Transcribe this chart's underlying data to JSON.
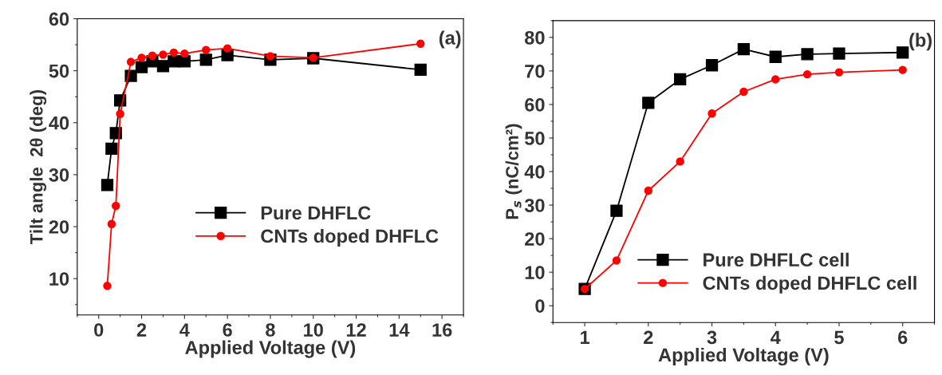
{
  "chart_data": [
    {
      "type": "line",
      "xlabel": "Applied Voltage (V)",
      "ylabel": "Tilt angle  2θ (deg)",
      "annotations": [
        "(a)"
      ],
      "xlim": [
        -1,
        17
      ],
      "ylim": [
        3,
        60
      ],
      "xticks": [
        0,
        2,
        4,
        6,
        8,
        10,
        12,
        14,
        16
      ],
      "yticks": [
        10,
        20,
        30,
        40,
        50,
        60
      ],
      "grid": false,
      "legend": "center right",
      "series": [
        {
          "name": "Pure DHFLC",
          "color": "#000000",
          "marker": "square",
          "x": [
            0.4,
            0.6,
            0.8,
            1.0,
            1.5,
            2,
            2.5,
            3,
            3.5,
            4,
            5,
            6,
            8,
            10,
            15
          ],
          "values": [
            28,
            35,
            38,
            44.3,
            49,
            50.7,
            51.8,
            50.9,
            51.8,
            51.8,
            52.1,
            53,
            52.1,
            52.4,
            50.2
          ]
        },
        {
          "name": "CNTs doped DHFLC",
          "color": "#ff0000",
          "marker": "circle",
          "x": [
            0.4,
            0.6,
            0.8,
            1.0,
            1.5,
            2,
            2.5,
            3,
            3.5,
            4,
            5,
            6,
            8,
            10,
            15
          ],
          "values": [
            8.6,
            20.5,
            24,
            41.7,
            51.7,
            52.5,
            52.9,
            53.1,
            53.5,
            53.3,
            54,
            54.3,
            52.8,
            52.5,
            55.2
          ]
        }
      ]
    },
    {
      "type": "line",
      "xlabel": "Applied Voltage (V)",
      "ylabel": "P$_{s}$ (nC/cm²)",
      "annotations": [
        "(b)"
      ],
      "xlim": [
        0.5,
        6.5
      ],
      "ylim": [
        -5,
        85
      ],
      "xticks": [
        1,
        2,
        3,
        4,
        5,
        6
      ],
      "yticks": [
        0,
        10,
        20,
        30,
        40,
        50,
        60,
        70,
        80
      ],
      "grid": false,
      "legend": "bottom right",
      "series": [
        {
          "name": "Pure DHFLC cell",
          "color": "#000000",
          "marker": "square",
          "x": [
            1,
            1.5,
            2,
            2.5,
            3,
            3.5,
            4,
            4.5,
            5,
            6
          ],
          "values": [
            5,
            28.3,
            60.5,
            67.5,
            71.7,
            76.5,
            74.2,
            75,
            75.2,
            75.5
          ]
        },
        {
          "name": "CNTs doped DHFLC cell",
          "color": "#ff0000",
          "marker": "circle",
          "x": [
            1,
            1.5,
            2,
            2.5,
            3,
            3.5,
            4,
            4.5,
            5,
            6
          ],
          "values": [
            5,
            13.5,
            34.3,
            43,
            57.3,
            63.8,
            67.5,
            69,
            69.6,
            70.3
          ]
        }
      ]
    }
  ]
}
